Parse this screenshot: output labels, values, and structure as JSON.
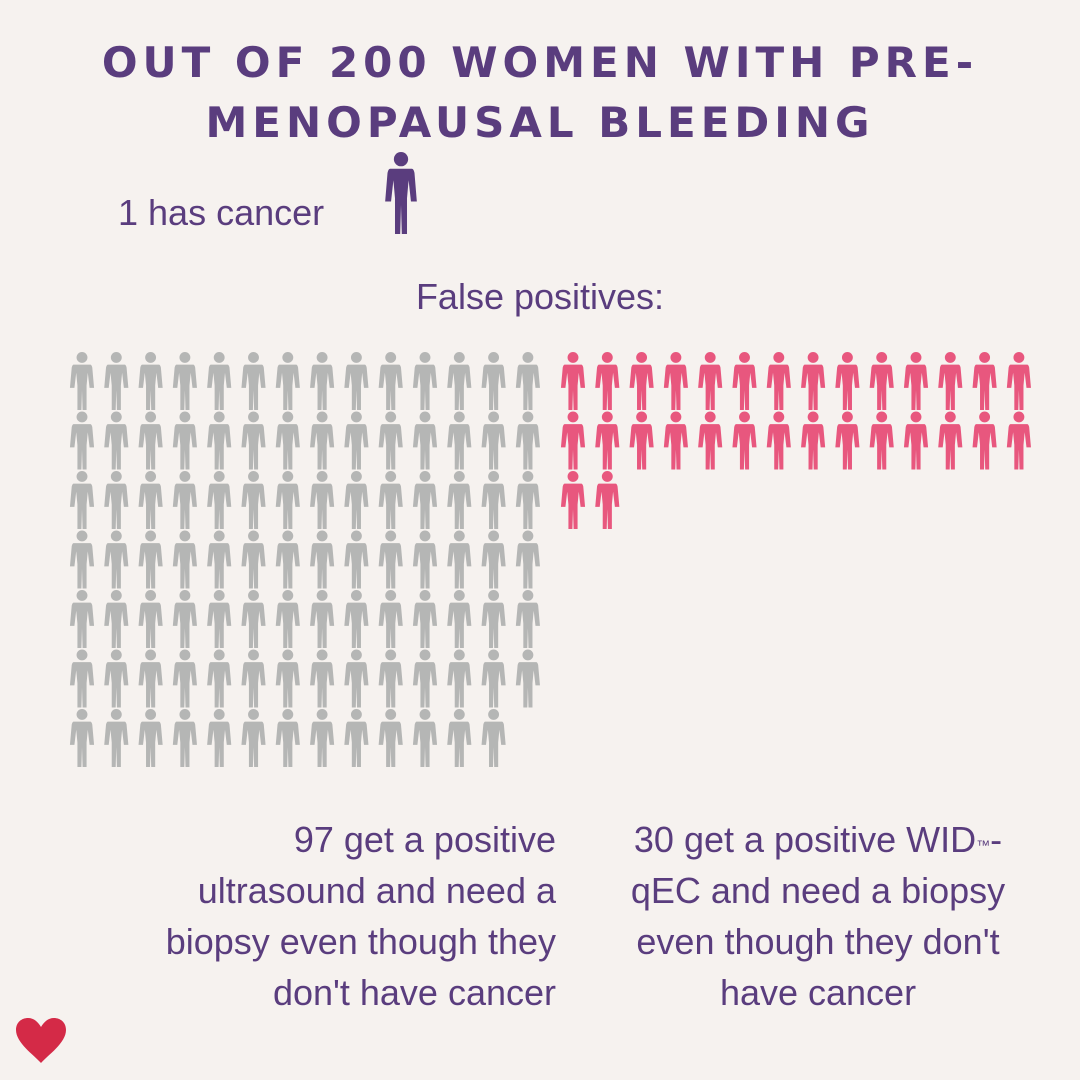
{
  "title": {
    "line1": "OUT OF 200 WOMEN WITH PRE-",
    "line2": "MENOPAUSAL BLEEDING"
  },
  "has_cancer_label": "1 has cancer",
  "false_positives_label": "False positives:",
  "captions": {
    "ultrasound": [
      "97 get a positive",
      "ultrasound and need a",
      "biopsy even though they",
      "don't have cancer"
    ],
    "wid_line1_pre": "30 get a positive WID",
    "wid_tm": "™",
    "wid_line1_post": "-",
    "wid_rest": [
      "qEC and need a biopsy",
      "even though they don't",
      "have cancer"
    ]
  },
  "icons": {
    "person_icon": "person-icon",
    "logo_icon": "heart-icon"
  },
  "colors": {
    "background": "#f6f2ef",
    "title_purple": "#5a3d7e",
    "text_purple": "#5a3d7e",
    "ultrasound_gray": "#b5b6b5",
    "wid_pink": "#e8577e",
    "heart_red": "#d42a47"
  },
  "chart_data": {
    "type": "pictograph",
    "total": 200,
    "series": [
      {
        "name": "has cancer",
        "value": 1
      },
      {
        "name": "ultrasound false positives",
        "value": 97
      },
      {
        "name": "WID-qEC false positives",
        "value": 30
      }
    ],
    "icons_per_row": 14
  }
}
